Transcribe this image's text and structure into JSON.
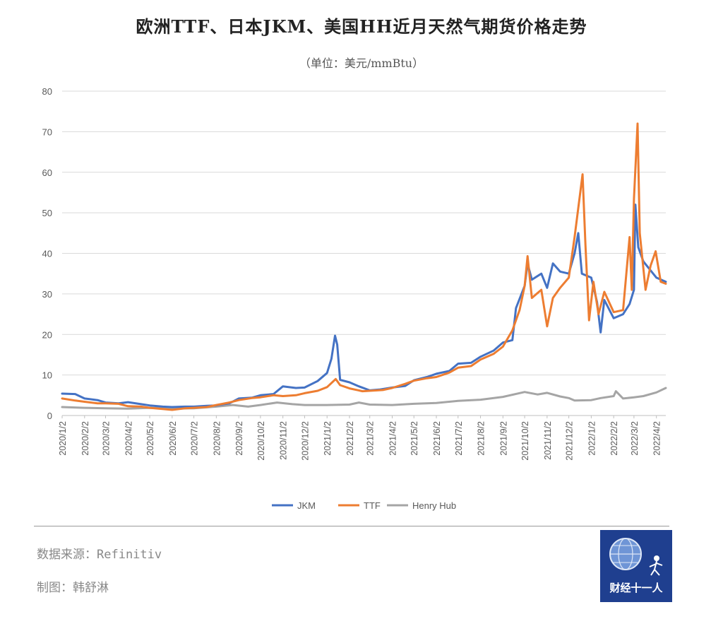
{
  "chart_data": {
    "type": "line",
    "title": "欧洲TTF、日本JKM、美国HH近月天然气期货价格走势",
    "subtitle": "（单位：美元/mmBtu）",
    "ylim": [
      0,
      80
    ],
    "yticks": [
      0,
      10,
      20,
      30,
      40,
      50,
      60,
      70,
      80
    ],
    "grid": true,
    "legend_position": "bottom",
    "x_range": [
      "2020-01-02",
      "2022-04-15"
    ],
    "xtick_labels": [
      "2020/1/2",
      "2020/2/2",
      "2020/3/2",
      "2020/4/2",
      "2020/5/2",
      "2020/6/2",
      "2020/7/2",
      "2020/8/2",
      "2020/9/2",
      "2020/10/2",
      "2020/11/2",
      "2020/12/2",
      "2021/1/2",
      "2021/2/2",
      "2021/3/2",
      "2021/4/2",
      "2021/5/2",
      "2021/6/2",
      "2021/7/2",
      "2021/8/2",
      "2021/9/2",
      "2021/10/2",
      "2021/11/2",
      "2021/12/2",
      "2022/1/2",
      "2022/2/2",
      "2022/3/2",
      "2022/4/2"
    ],
    "series": [
      {
        "name": "JKM",
        "color": "#4472c4",
        "points": [
          [
            "2020-01-02",
            5.4
          ],
          [
            "2020-01-20",
            5.3
          ],
          [
            "2020-02-02",
            4.2
          ],
          [
            "2020-02-20",
            3.8
          ],
          [
            "2020-03-02",
            3.2
          ],
          [
            "2020-03-20",
            3.0
          ],
          [
            "2020-04-02",
            3.3
          ],
          [
            "2020-04-20",
            2.8
          ],
          [
            "2020-05-02",
            2.5
          ],
          [
            "2020-05-20",
            2.2
          ],
          [
            "2020-06-02",
            2.1
          ],
          [
            "2020-06-20",
            2.2
          ],
          [
            "2020-07-02",
            2.2
          ],
          [
            "2020-07-20",
            2.4
          ],
          [
            "2020-08-02",
            2.5
          ],
          [
            "2020-08-20",
            3.0
          ],
          [
            "2020-09-02",
            4.2
          ],
          [
            "2020-09-20",
            4.4
          ],
          [
            "2020-10-02",
            5.0
          ],
          [
            "2020-10-20",
            5.3
          ],
          [
            "2020-11-02",
            7.2
          ],
          [
            "2020-11-20",
            6.8
          ],
          [
            "2020-12-02",
            6.9
          ],
          [
            "2020-12-20",
            8.5
          ],
          [
            "2021-01-02",
            10.5
          ],
          [
            "2021-01-08",
            14.0
          ],
          [
            "2021-01-13",
            19.7
          ],
          [
            "2021-01-16",
            17.5
          ],
          [
            "2021-01-20",
            8.8
          ],
          [
            "2021-02-02",
            8.2
          ],
          [
            "2021-02-15",
            7.2
          ],
          [
            "2021-03-02",
            6.2
          ],
          [
            "2021-03-15",
            6.4
          ],
          [
            "2021-04-02",
            6.9
          ],
          [
            "2021-04-20",
            7.3
          ],
          [
            "2021-05-02",
            8.7
          ],
          [
            "2021-05-20",
            9.5
          ],
          [
            "2021-06-02",
            10.3
          ],
          [
            "2021-06-20",
            11.0
          ],
          [
            "2021-07-02",
            12.8
          ],
          [
            "2021-07-20",
            13.0
          ],
          [
            "2021-08-02",
            14.5
          ],
          [
            "2021-08-20",
            16.0
          ],
          [
            "2021-09-02",
            18.0
          ],
          [
            "2021-09-15",
            18.6
          ],
          [
            "2021-09-20",
            26.5
          ],
          [
            "2021-10-02",
            32.0
          ],
          [
            "2021-10-06",
            37.5
          ],
          [
            "2021-10-12",
            33.5
          ],
          [
            "2021-10-25",
            35.0
          ],
          [
            "2021-11-02",
            31.5
          ],
          [
            "2021-11-10",
            37.5
          ],
          [
            "2021-11-20",
            35.5
          ],
          [
            "2021-12-02",
            35.0
          ],
          [
            "2021-12-10",
            40.0
          ],
          [
            "2021-12-15",
            45.0
          ],
          [
            "2021-12-20",
            35.0
          ],
          [
            "2022-01-02",
            34.0
          ],
          [
            "2022-01-10",
            28.0
          ],
          [
            "2022-01-15",
            20.5
          ],
          [
            "2022-01-20",
            28.5
          ],
          [
            "2022-02-02",
            24.0
          ],
          [
            "2022-02-15",
            25.0
          ],
          [
            "2022-02-24",
            27.5
          ],
          [
            "2022-03-02",
            31.0
          ],
          [
            "2022-03-04",
            52.0
          ],
          [
            "2022-03-08",
            41.5
          ],
          [
            "2022-03-15",
            38.0
          ],
          [
            "2022-04-02",
            34.0
          ],
          [
            "2022-04-15",
            33.0
          ]
        ]
      },
      {
        "name": "TTF",
        "color": "#ed7d31",
        "points": [
          [
            "2020-01-02",
            4.2
          ],
          [
            "2020-01-20",
            3.7
          ],
          [
            "2020-02-02",
            3.4
          ],
          [
            "2020-02-20",
            3.0
          ],
          [
            "2020-03-02",
            3.0
          ],
          [
            "2020-03-20",
            2.9
          ],
          [
            "2020-04-02",
            2.3
          ],
          [
            "2020-04-20",
            2.2
          ],
          [
            "2020-05-02",
            1.9
          ],
          [
            "2020-05-20",
            1.6
          ],
          [
            "2020-06-02",
            1.4
          ],
          [
            "2020-06-20",
            1.8
          ],
          [
            "2020-07-02",
            1.9
          ],
          [
            "2020-07-20",
            2.1
          ],
          [
            "2020-08-02",
            2.6
          ],
          [
            "2020-08-20",
            3.2
          ],
          [
            "2020-09-02",
            3.8
          ],
          [
            "2020-09-20",
            4.3
          ],
          [
            "2020-10-02",
            4.5
          ],
          [
            "2020-10-20",
            5.0
          ],
          [
            "2020-11-02",
            4.8
          ],
          [
            "2020-11-20",
            5.0
          ],
          [
            "2020-12-02",
            5.5
          ],
          [
            "2020-12-20",
            6.1
          ],
          [
            "2021-01-02",
            7.0
          ],
          [
            "2021-01-14",
            9.0
          ],
          [
            "2021-01-20",
            7.5
          ],
          [
            "2021-02-02",
            6.7
          ],
          [
            "2021-02-20",
            6.0
          ],
          [
            "2021-03-02",
            6.1
          ],
          [
            "2021-03-20",
            6.3
          ],
          [
            "2021-04-02",
            6.8
          ],
          [
            "2021-04-20",
            7.8
          ],
          [
            "2021-05-02",
            8.6
          ],
          [
            "2021-05-20",
            9.2
          ],
          [
            "2021-06-02",
            9.5
          ],
          [
            "2021-06-20",
            10.6
          ],
          [
            "2021-07-02",
            11.8
          ],
          [
            "2021-07-20",
            12.2
          ],
          [
            "2021-08-02",
            13.8
          ],
          [
            "2021-08-20",
            15.2
          ],
          [
            "2021-09-02",
            17.0
          ],
          [
            "2021-09-15",
            21.0
          ],
          [
            "2021-09-25",
            26.0
          ],
          [
            "2021-10-02",
            32.0
          ],
          [
            "2021-10-06",
            39.3
          ],
          [
            "2021-10-12",
            29.0
          ],
          [
            "2021-10-25",
            31.0
          ],
          [
            "2021-11-02",
            22.0
          ],
          [
            "2021-11-10",
            29.0
          ],
          [
            "2021-11-20",
            31.5
          ],
          [
            "2021-12-02",
            34.0
          ],
          [
            "2021-12-10",
            44.0
          ],
          [
            "2021-12-21",
            59.5
          ],
          [
            "2021-12-25",
            42.0
          ],
          [
            "2021-12-30",
            23.5
          ],
          [
            "2022-01-05",
            33.0
          ],
          [
            "2022-01-12",
            25.0
          ],
          [
            "2022-01-20",
            30.5
          ],
          [
            "2022-02-02",
            25.5
          ],
          [
            "2022-02-15",
            26.0
          ],
          [
            "2022-02-24",
            44.0
          ],
          [
            "2022-02-27",
            31.0
          ],
          [
            "2022-03-02",
            53.5
          ],
          [
            "2022-03-07",
            72.0
          ],
          [
            "2022-03-10",
            45.0
          ],
          [
            "2022-03-18",
            31.0
          ],
          [
            "2022-03-25",
            37.0
          ],
          [
            "2022-04-01",
            40.5
          ],
          [
            "2022-04-08",
            33.0
          ],
          [
            "2022-04-15",
            32.5
          ]
        ]
      },
      {
        "name": "Henry Hub",
        "color": "#a5a5a5",
        "points": [
          [
            "2020-01-02",
            2.1
          ],
          [
            "2020-02-02",
            1.9
          ],
          [
            "2020-03-02",
            1.8
          ],
          [
            "2020-04-02",
            1.7
          ],
          [
            "2020-05-02",
            1.9
          ],
          [
            "2020-06-02",
            1.7
          ],
          [
            "2020-07-02",
            1.8
          ],
          [
            "2020-08-02",
            2.2
          ],
          [
            "2020-08-25",
            2.6
          ],
          [
            "2020-09-15",
            2.2
          ],
          [
            "2020-10-02",
            2.6
          ],
          [
            "2020-10-25",
            3.2
          ],
          [
            "2020-11-15",
            2.8
          ],
          [
            "2020-12-02",
            2.6
          ],
          [
            "2021-01-02",
            2.6
          ],
          [
            "2021-02-02",
            2.7
          ],
          [
            "2021-02-15",
            3.2
          ],
          [
            "2021-03-02",
            2.7
          ],
          [
            "2021-04-02",
            2.6
          ],
          [
            "2021-05-02",
            2.9
          ],
          [
            "2021-06-02",
            3.1
          ],
          [
            "2021-07-02",
            3.6
          ],
          [
            "2021-08-02",
            3.9
          ],
          [
            "2021-09-02",
            4.6
          ],
          [
            "2021-10-02",
            5.8
          ],
          [
            "2021-10-20",
            5.2
          ],
          [
            "2021-11-02",
            5.6
          ],
          [
            "2021-11-20",
            4.7
          ],
          [
            "2021-12-02",
            4.3
          ],
          [
            "2021-12-10",
            3.7
          ],
          [
            "2022-01-02",
            3.8
          ],
          [
            "2022-01-15",
            4.3
          ],
          [
            "2022-02-02",
            4.8
          ],
          [
            "2022-02-05",
            6.0
          ],
          [
            "2022-02-15",
            4.2
          ],
          [
            "2022-03-02",
            4.5
          ],
          [
            "2022-03-15",
            4.8
          ],
          [
            "2022-04-02",
            5.7
          ],
          [
            "2022-04-15",
            6.8
          ]
        ]
      }
    ]
  },
  "footer": {
    "source": "数据来源：Refinitiv",
    "author": "制图：韩舒淋"
  },
  "logo": {
    "text": "财经十一人",
    "color": "#1f3f8f",
    "icon": "globe-icon"
  }
}
